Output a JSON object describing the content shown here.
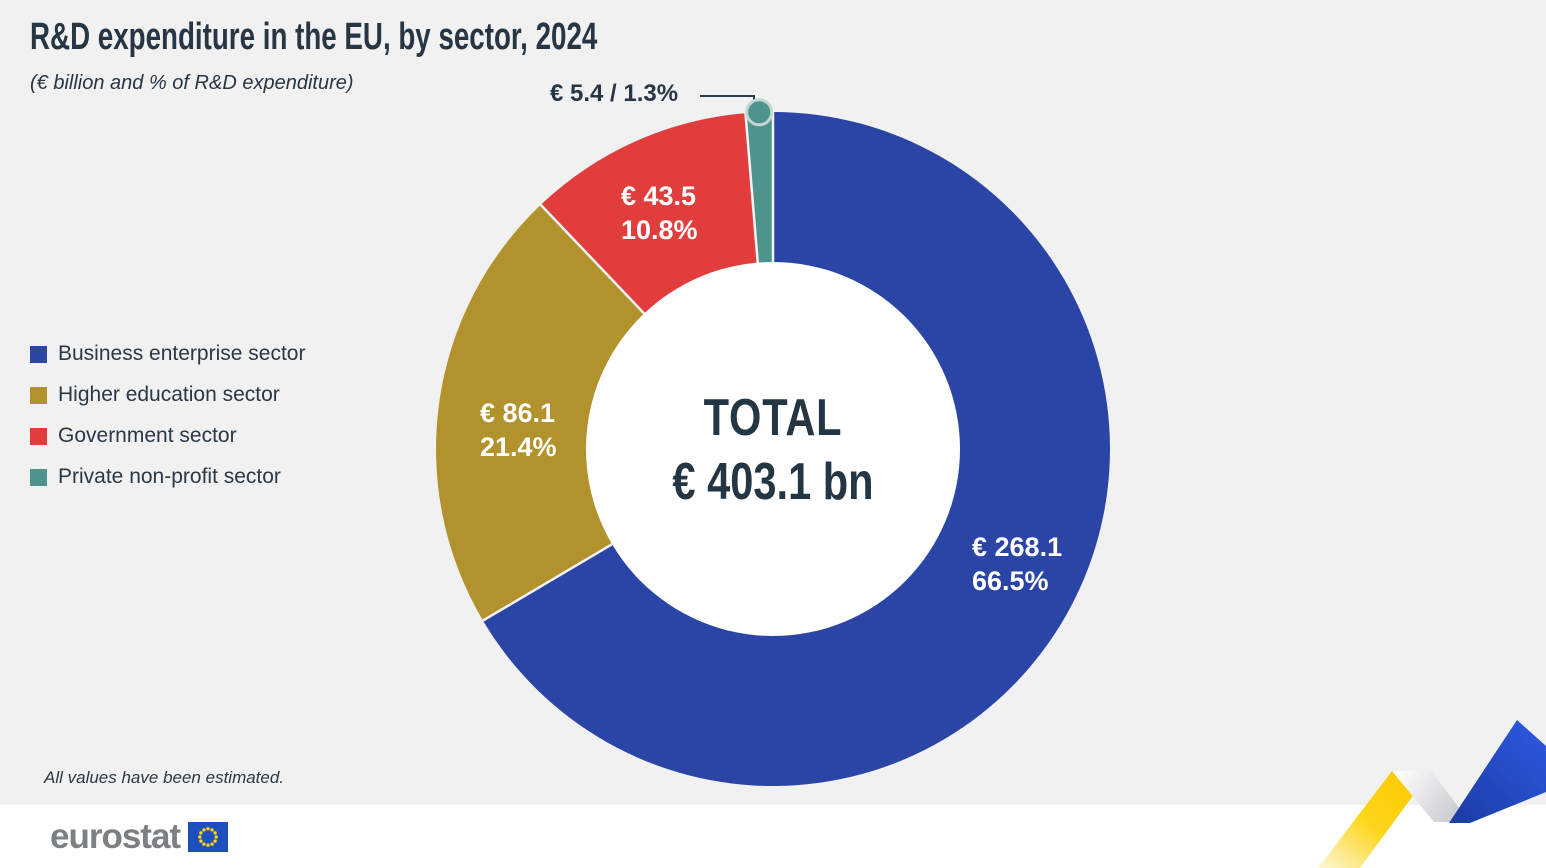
{
  "header": {
    "title": "R&D expenditure in the EU, by sector, 2024",
    "subtitle": "(€ billion and % of R&D expenditure)"
  },
  "chart_data": {
    "type": "pie",
    "subtype": "donut",
    "direction": "clockwise",
    "start_angle": "12-oclock",
    "title": "R&D expenditure in the EU, by sector, 2024",
    "units": "€ billion and % of R&D expenditure",
    "total": {
      "label": "TOTAL",
      "display": "€ 403.1 bn",
      "value_bn_eur": 403.1
    },
    "categories": [
      "Business enterprise sector",
      "Higher education sector",
      "Government sector",
      "Private non-profit sector"
    ],
    "values_bn_eur": [
      268.1,
      86.1,
      43.5,
      5.4
    ],
    "percents": [
      66.5,
      21.4,
      10.8,
      1.3
    ],
    "segments": [
      {
        "name": "Business enterprise sector",
        "value_bn_eur": 268.1,
        "percent": 66.5,
        "color": "#2b45a7",
        "value_label": "€ 268.1",
        "percent_label": "66.5%"
      },
      {
        "name": "Higher education sector",
        "value_bn_eur": 86.1,
        "percent": 21.4,
        "color": "#b2922c",
        "value_label": "€ 86.1",
        "percent_label": "21.4%"
      },
      {
        "name": "Government sector",
        "value_bn_eur": 43.5,
        "percent": 10.8,
        "color": "#e23d3d",
        "value_label": "€ 43.5",
        "percent_label": "10.8%"
      },
      {
        "name": "Private non-profit sector",
        "value_bn_eur": 5.4,
        "percent": 1.3,
        "color": "#4f948c",
        "callout_label": "€ 5.4 / 1.3%"
      }
    ],
    "legend_position": "left"
  },
  "footer": {
    "note": "All values have been estimated.",
    "logo_text": "eurostat"
  },
  "colors": {
    "background": "#f1f1f2",
    "footer_background": "#ffffff",
    "text_dark": "#273645",
    "slice_label": "#ffffff",
    "separator": "#f2f3f4",
    "callout_line": "#2b3948",
    "eurostat_gray": "#7d8083",
    "flag_blue": "#1e50bc",
    "flag_star_yellow": "#ffd617",
    "ribbon_yellow": "#fdcf00",
    "ribbon_blue": "#2750d8"
  }
}
